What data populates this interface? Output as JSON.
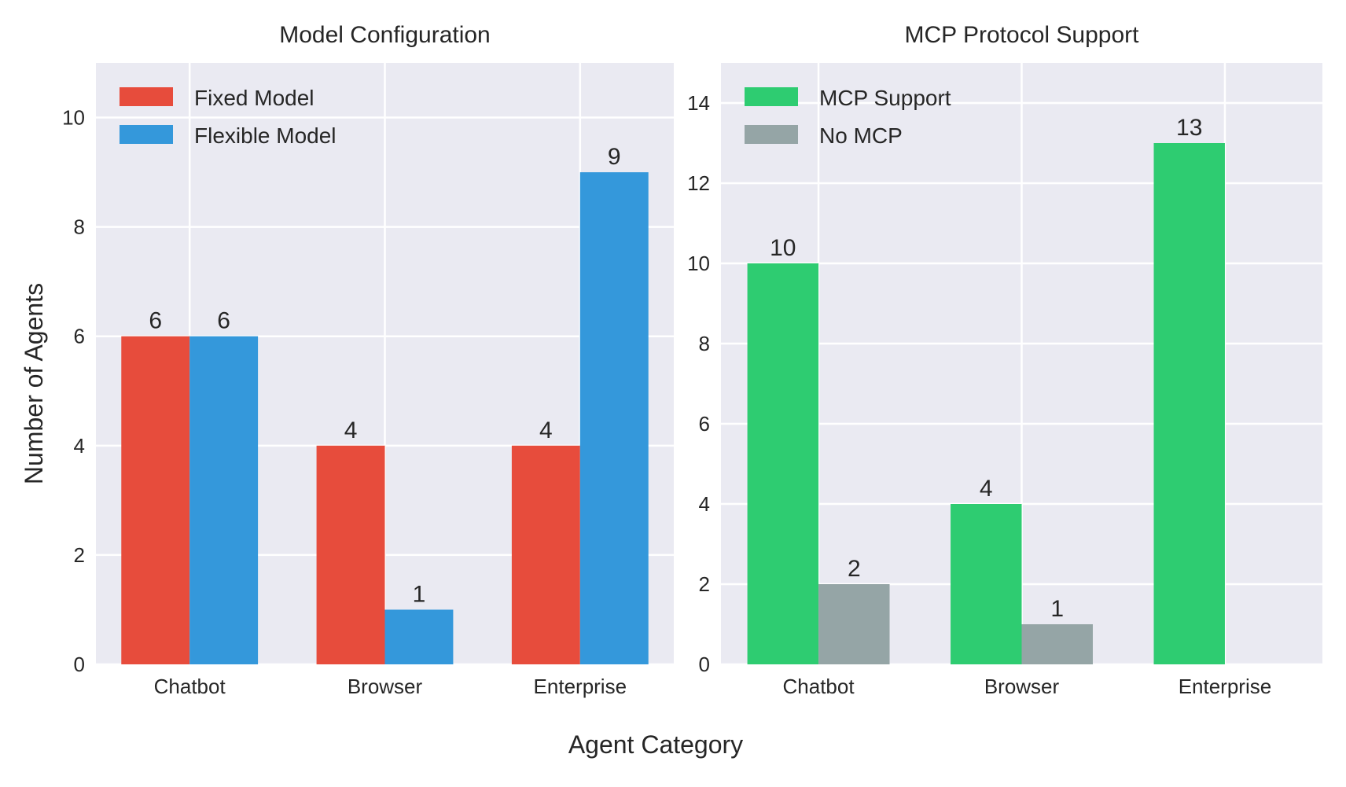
{
  "figure": {
    "xlabel": "Agent Category",
    "ylabel": "Number of Agents"
  },
  "chart_data": [
    {
      "type": "bar",
      "title": "Model Configuration",
      "categories": [
        "Chatbot",
        "Browser",
        "Enterprise"
      ],
      "series": [
        {
          "name": "Fixed Model",
          "values": [
            6,
            4,
            4
          ],
          "color": "#e74c3c"
        },
        {
          "name": "Flexible Model",
          "values": [
            6,
            1,
            9
          ],
          "color": "#3498db"
        }
      ],
      "ylim": [
        0,
        11
      ],
      "yticks": [
        0,
        2,
        4,
        6,
        8,
        10
      ],
      "grid": true,
      "legend": "top-left",
      "background": "#eaeaf2"
    },
    {
      "type": "bar",
      "title": "MCP Protocol Support",
      "categories": [
        "Chatbot",
        "Browser",
        "Enterprise"
      ],
      "series": [
        {
          "name": "MCP Support",
          "values": [
            10,
            4,
            13
          ],
          "color": "#2ecc71"
        },
        {
          "name": "No MCP",
          "values": [
            2,
            1,
            0
          ],
          "color": "#95a5a6"
        }
      ],
      "ylim": [
        0,
        15
      ],
      "yticks": [
        0,
        2,
        4,
        6,
        8,
        10,
        12,
        14
      ],
      "grid": true,
      "legend": "top-left",
      "background": "#eaeaf2"
    }
  ]
}
